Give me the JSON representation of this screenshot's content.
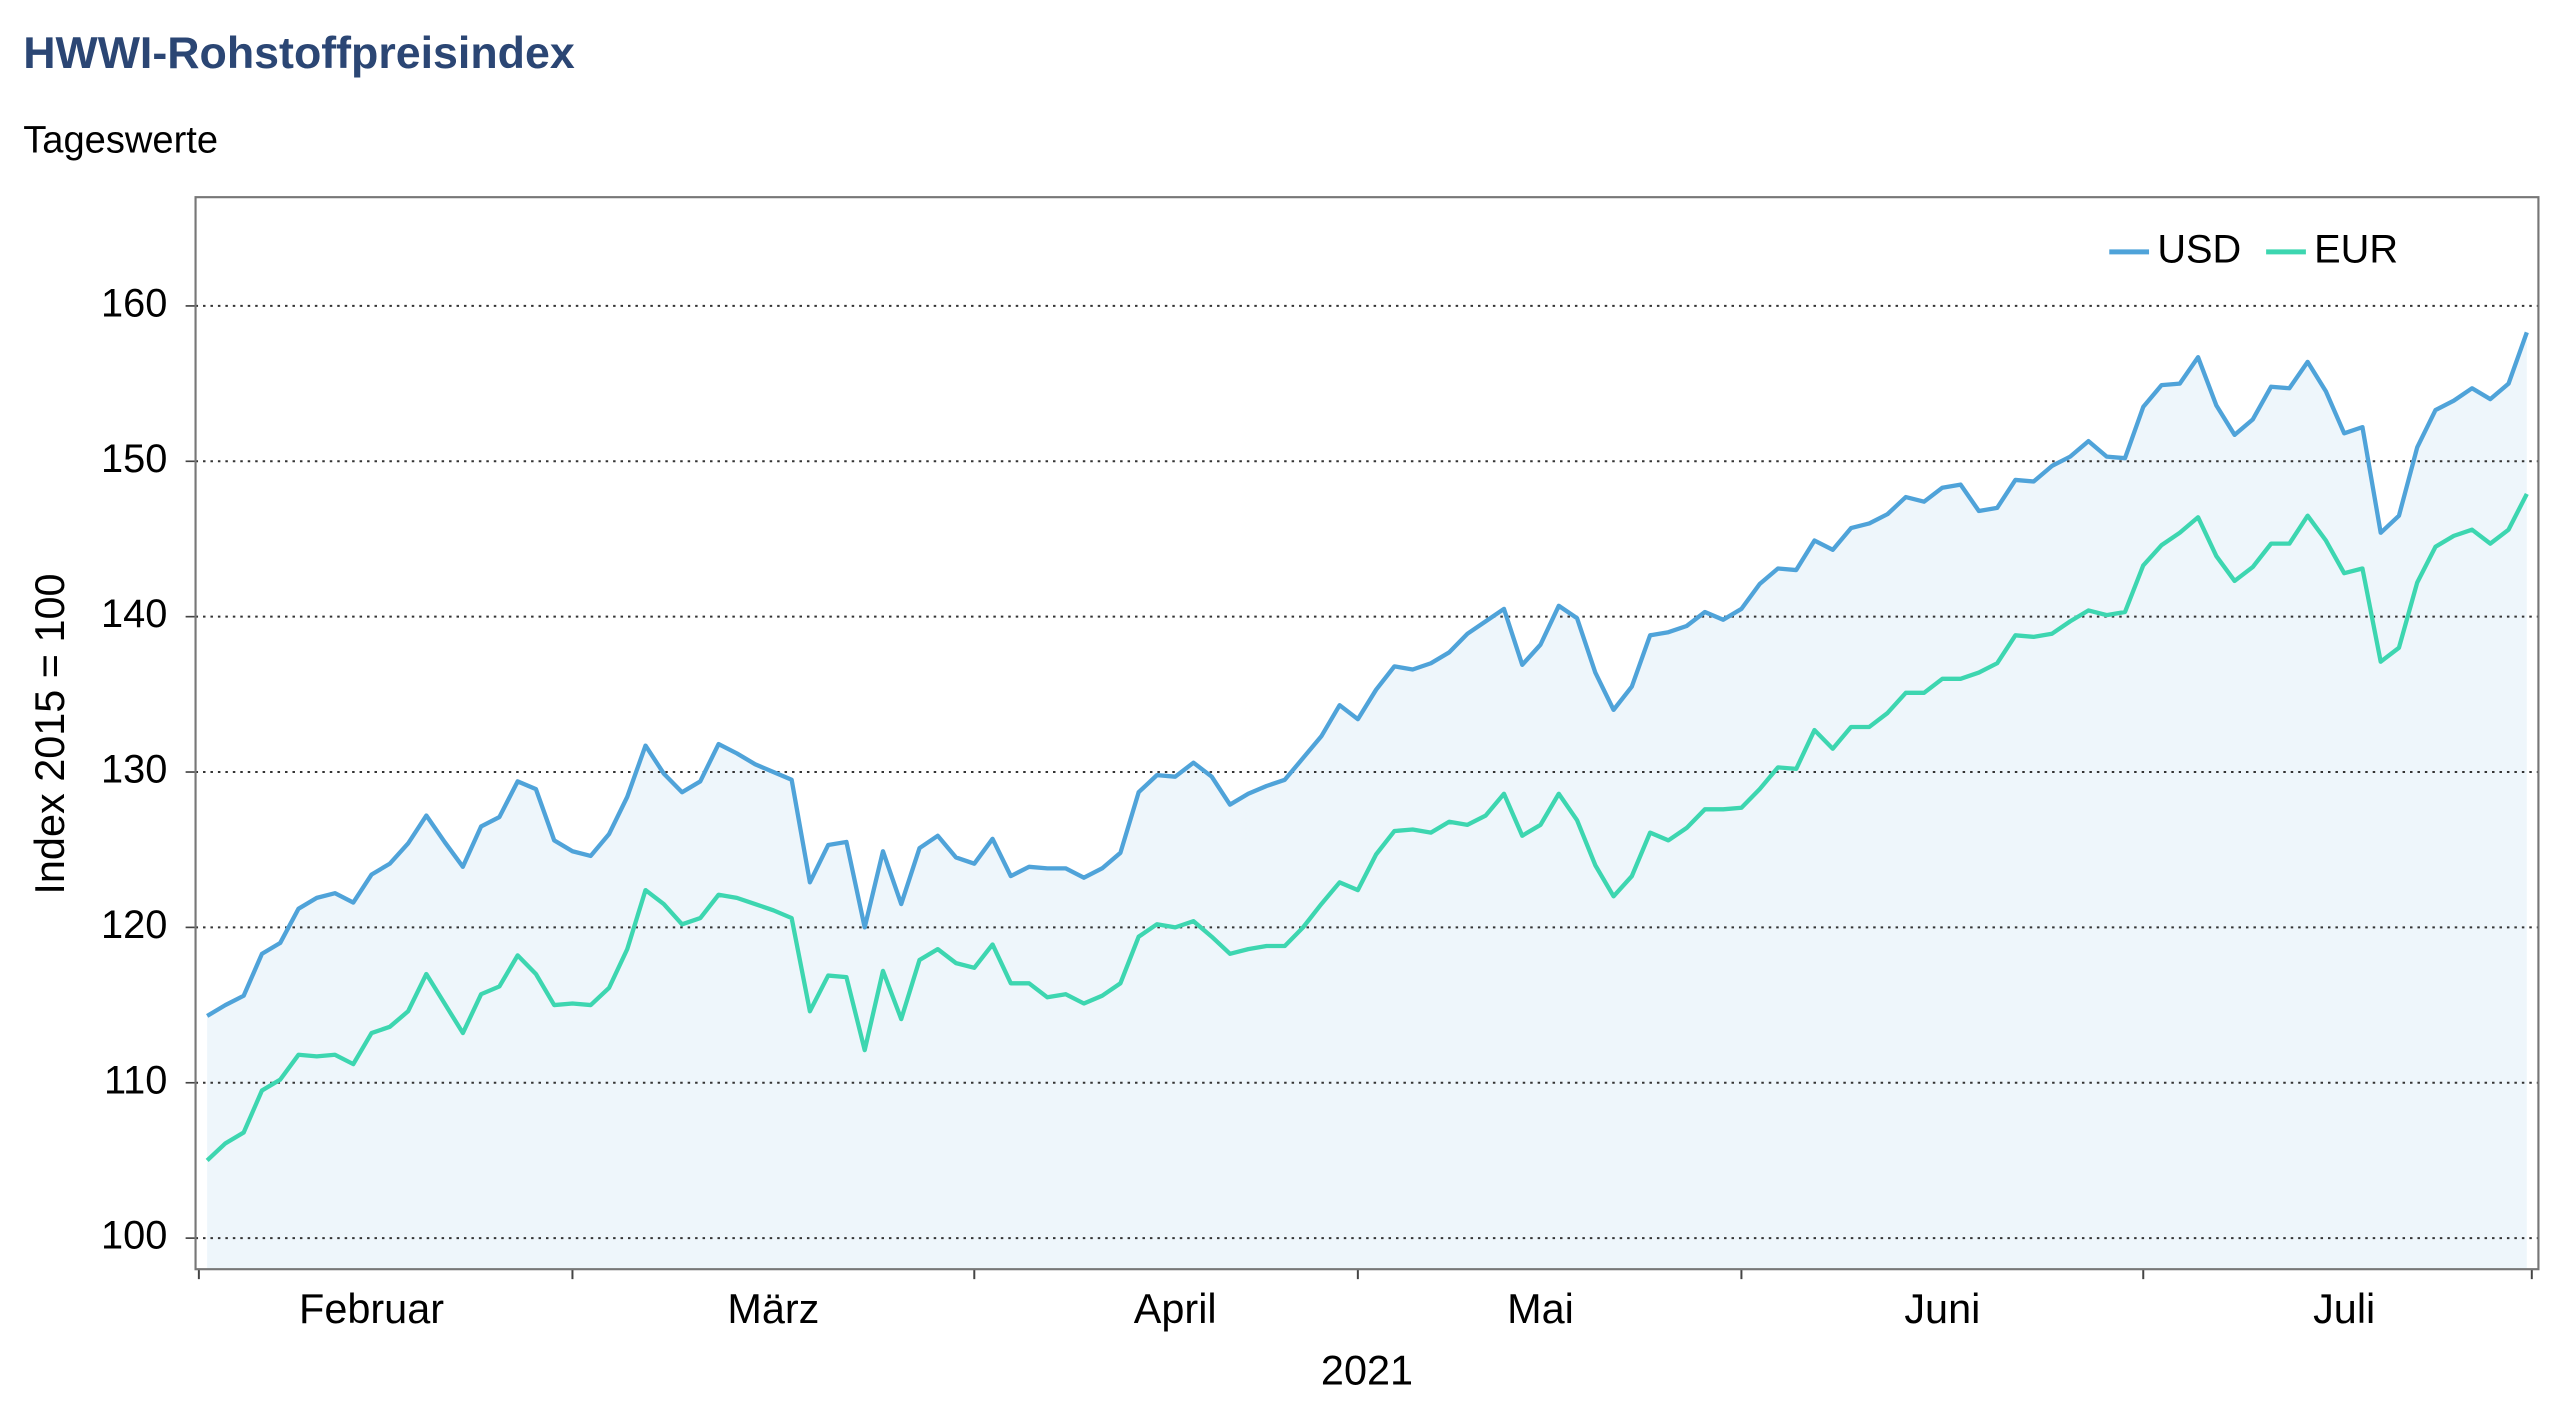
{
  "chart_data": {
    "type": "line",
    "title": "HWWI-Rohstoffpreisindex",
    "subtitle": "Tageswerte",
    "ylabel": "Index 2015 = 100",
    "xlabel": "2021",
    "categories": [
      null,
      null,
      null,
      null,
      null,
      null,
      null,
      null,
      null,
      "Februar",
      null,
      null,
      null,
      null,
      null,
      null,
      null,
      null,
      null,
      null,
      null,
      null,
      null,
      null,
      null,
      null,
      null,
      null,
      null,
      null,
      null,
      "März",
      null,
      null,
      null,
      null,
      null,
      null,
      null,
      null,
      null,
      null,
      null,
      null,
      null,
      null,
      null,
      null,
      null,
      null,
      null,
      null,
      null,
      "April",
      null,
      null,
      null,
      null,
      null,
      null,
      null,
      null,
      null,
      null,
      null,
      null,
      null,
      null,
      null,
      null,
      null,
      null,
      null,
      "Mai",
      null,
      null,
      null,
      null,
      null,
      null,
      null,
      null,
      null,
      null,
      null,
      null,
      null,
      null,
      null,
      null,
      null,
      null,
      null,
      null,
      null,
      "Juni",
      null,
      null,
      null,
      null,
      null,
      null,
      null,
      null,
      null,
      null,
      null,
      null,
      null,
      null,
      null,
      null,
      null,
      null,
      null,
      null,
      null,
      "Juli",
      null,
      null,
      null,
      null,
      null,
      null,
      null,
      null,
      null,
      null
    ],
    "series": [
      {
        "name": "USD",
        "color": "#4fa3d9",
        "values": [
          114.3,
          115.0,
          115.6,
          118.3,
          119.0,
          121.2,
          121.9,
          122.2,
          121.6,
          123.4,
          124.1,
          125.4,
          127.2,
          125.5,
          123.9,
          126.5,
          127.1,
          129.4,
          128.9,
          125.6,
          124.9,
          124.6,
          126.0,
          128.4,
          131.7,
          129.9,
          128.7,
          129.4,
          131.8,
          131.2,
          130.5,
          130.0,
          129.5,
          122.9,
          125.3,
          125.5,
          120.0,
          124.9,
          121.5,
          125.1,
          125.9,
          124.5,
          124.1,
          125.7,
          123.3,
          123.9,
          123.8,
          123.8,
          123.2,
          123.8,
          124.8,
          128.7,
          129.8,
          129.7,
          130.6,
          129.7,
          127.9,
          128.6,
          129.1,
          129.5,
          130.9,
          132.3,
          134.3,
          133.4,
          135.3,
          136.8,
          136.6,
          137.0,
          137.7,
          138.9,
          139.7,
          140.5,
          136.9,
          138.2,
          140.7,
          139.9,
          136.4,
          134.0,
          135.5,
          138.8,
          139.0,
          139.4,
          140.3,
          139.8,
          140.5,
          142.1,
          143.1,
          143.0,
          144.9,
          144.3,
          145.7,
          146.0,
          146.6,
          147.7,
          147.4,
          148.3,
          148.5,
          146.8,
          147.0,
          148.8,
          148.7,
          149.7,
          150.3,
          151.3,
          150.3,
          150.2,
          153.5,
          154.9,
          155.0,
          156.7,
          153.6,
          151.7,
          152.7,
          154.8,
          154.7,
          156.4,
          154.5,
          151.8,
          152.2,
          145.4,
          146.5,
          150.9,
          153.3,
          153.9,
          154.7,
          154.0,
          155.0,
          158.3
        ]
      },
      {
        "name": "EUR",
        "color": "#3dd6b0",
        "values": [
          105.0,
          106.1,
          106.8,
          109.5,
          110.2,
          111.8,
          111.7,
          111.8,
          111.2,
          113.2,
          113.6,
          114.6,
          117.0,
          115.1,
          113.2,
          115.7,
          116.2,
          118.2,
          117.0,
          115.0,
          115.1,
          115.0,
          116.1,
          118.6,
          122.4,
          121.5,
          120.2,
          120.6,
          122.1,
          121.9,
          121.5,
          121.1,
          120.6,
          114.6,
          116.9,
          116.8,
          112.1,
          117.2,
          114.1,
          117.9,
          118.6,
          117.7,
          117.4,
          118.9,
          116.4,
          116.4,
          115.5,
          115.7,
          115.1,
          115.6,
          116.4,
          119.4,
          120.2,
          120.0,
          120.4,
          119.4,
          118.3,
          118.6,
          118.8,
          118.8,
          120.0,
          121.5,
          122.9,
          122.4,
          124.7,
          126.2,
          126.3,
          126.1,
          126.8,
          126.6,
          127.2,
          128.6,
          125.9,
          126.6,
          128.6,
          126.9,
          124.0,
          122.0,
          123.3,
          126.1,
          125.6,
          126.4,
          127.6,
          127.6,
          127.7,
          128.9,
          130.3,
          130.2,
          132.7,
          131.5,
          132.9,
          132.9,
          133.8,
          135.1,
          135.1,
          136.0,
          136.0,
          136.4,
          137.0,
          138.8,
          138.7,
          138.9,
          139.7,
          140.4,
          140.1,
          140.3,
          143.3,
          144.6,
          145.4,
          146.4,
          143.9,
          142.3,
          143.2,
          144.7,
          144.7,
          146.5,
          144.9,
          142.8,
          143.1,
          137.1,
          138.0,
          142.2,
          144.5,
          145.2,
          145.6,
          144.7,
          145.6,
          147.9
        ]
      }
    ],
    "ylim": [
      98,
      167
    ],
    "yticks": [
      100,
      110,
      120,
      130,
      140,
      150,
      160
    ],
    "grid": true,
    "legend": "upper right",
    "area_fill": "#eef6fb"
  }
}
